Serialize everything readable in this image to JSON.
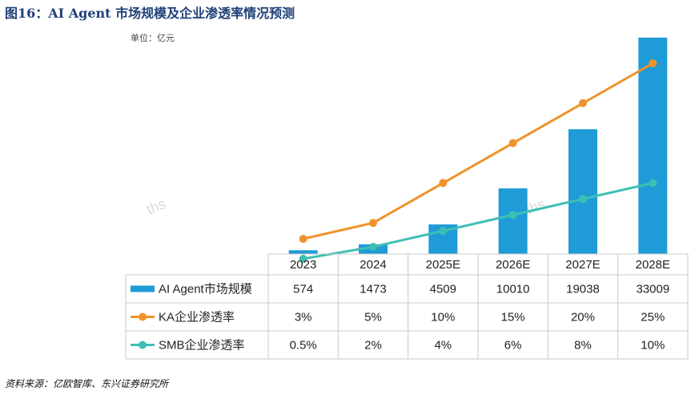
{
  "title": "图16：AI Agent 市场规模及企业渗透率情况预测",
  "unit": "单位：亿元",
  "source": "资料来源：亿欧智库、东兴证券研究所",
  "watermark": "ths",
  "colors": {
    "bar": "#1f9bd7",
    "ka": "#f0922b",
    "smb": "#3ebfb4",
    "title": "#1f3f78"
  },
  "chart_data": {
    "type": "bar",
    "categories": [
      "2023",
      "2024",
      "2025E",
      "2026E",
      "2027E",
      "2028E"
    ],
    "series": [
      {
        "name": "AI Agent市场规模",
        "type": "bar",
        "values": [
          574,
          1473,
          4509,
          10010,
          19038,
          33009
        ],
        "labels": [
          "574",
          "1473",
          "4509",
          "10010",
          "19038",
          "33009"
        ]
      },
      {
        "name": "KA企业渗透率",
        "type": "line",
        "unit": "%",
        "values": [
          3,
          5,
          10,
          15,
          20,
          25
        ],
        "labels": [
          "3%",
          "5%",
          "10%",
          "15%",
          "20%",
          "25%"
        ]
      },
      {
        "name": "SMB企业渗透率",
        "type": "line",
        "unit": "%",
        "values": [
          0.5,
          2,
          4,
          6,
          8,
          10
        ],
        "labels": [
          "0.5%",
          "2%",
          "4%",
          "6%",
          "8%",
          "10%"
        ]
      }
    ],
    "grid": false,
    "legend": "data-table-left"
  }
}
